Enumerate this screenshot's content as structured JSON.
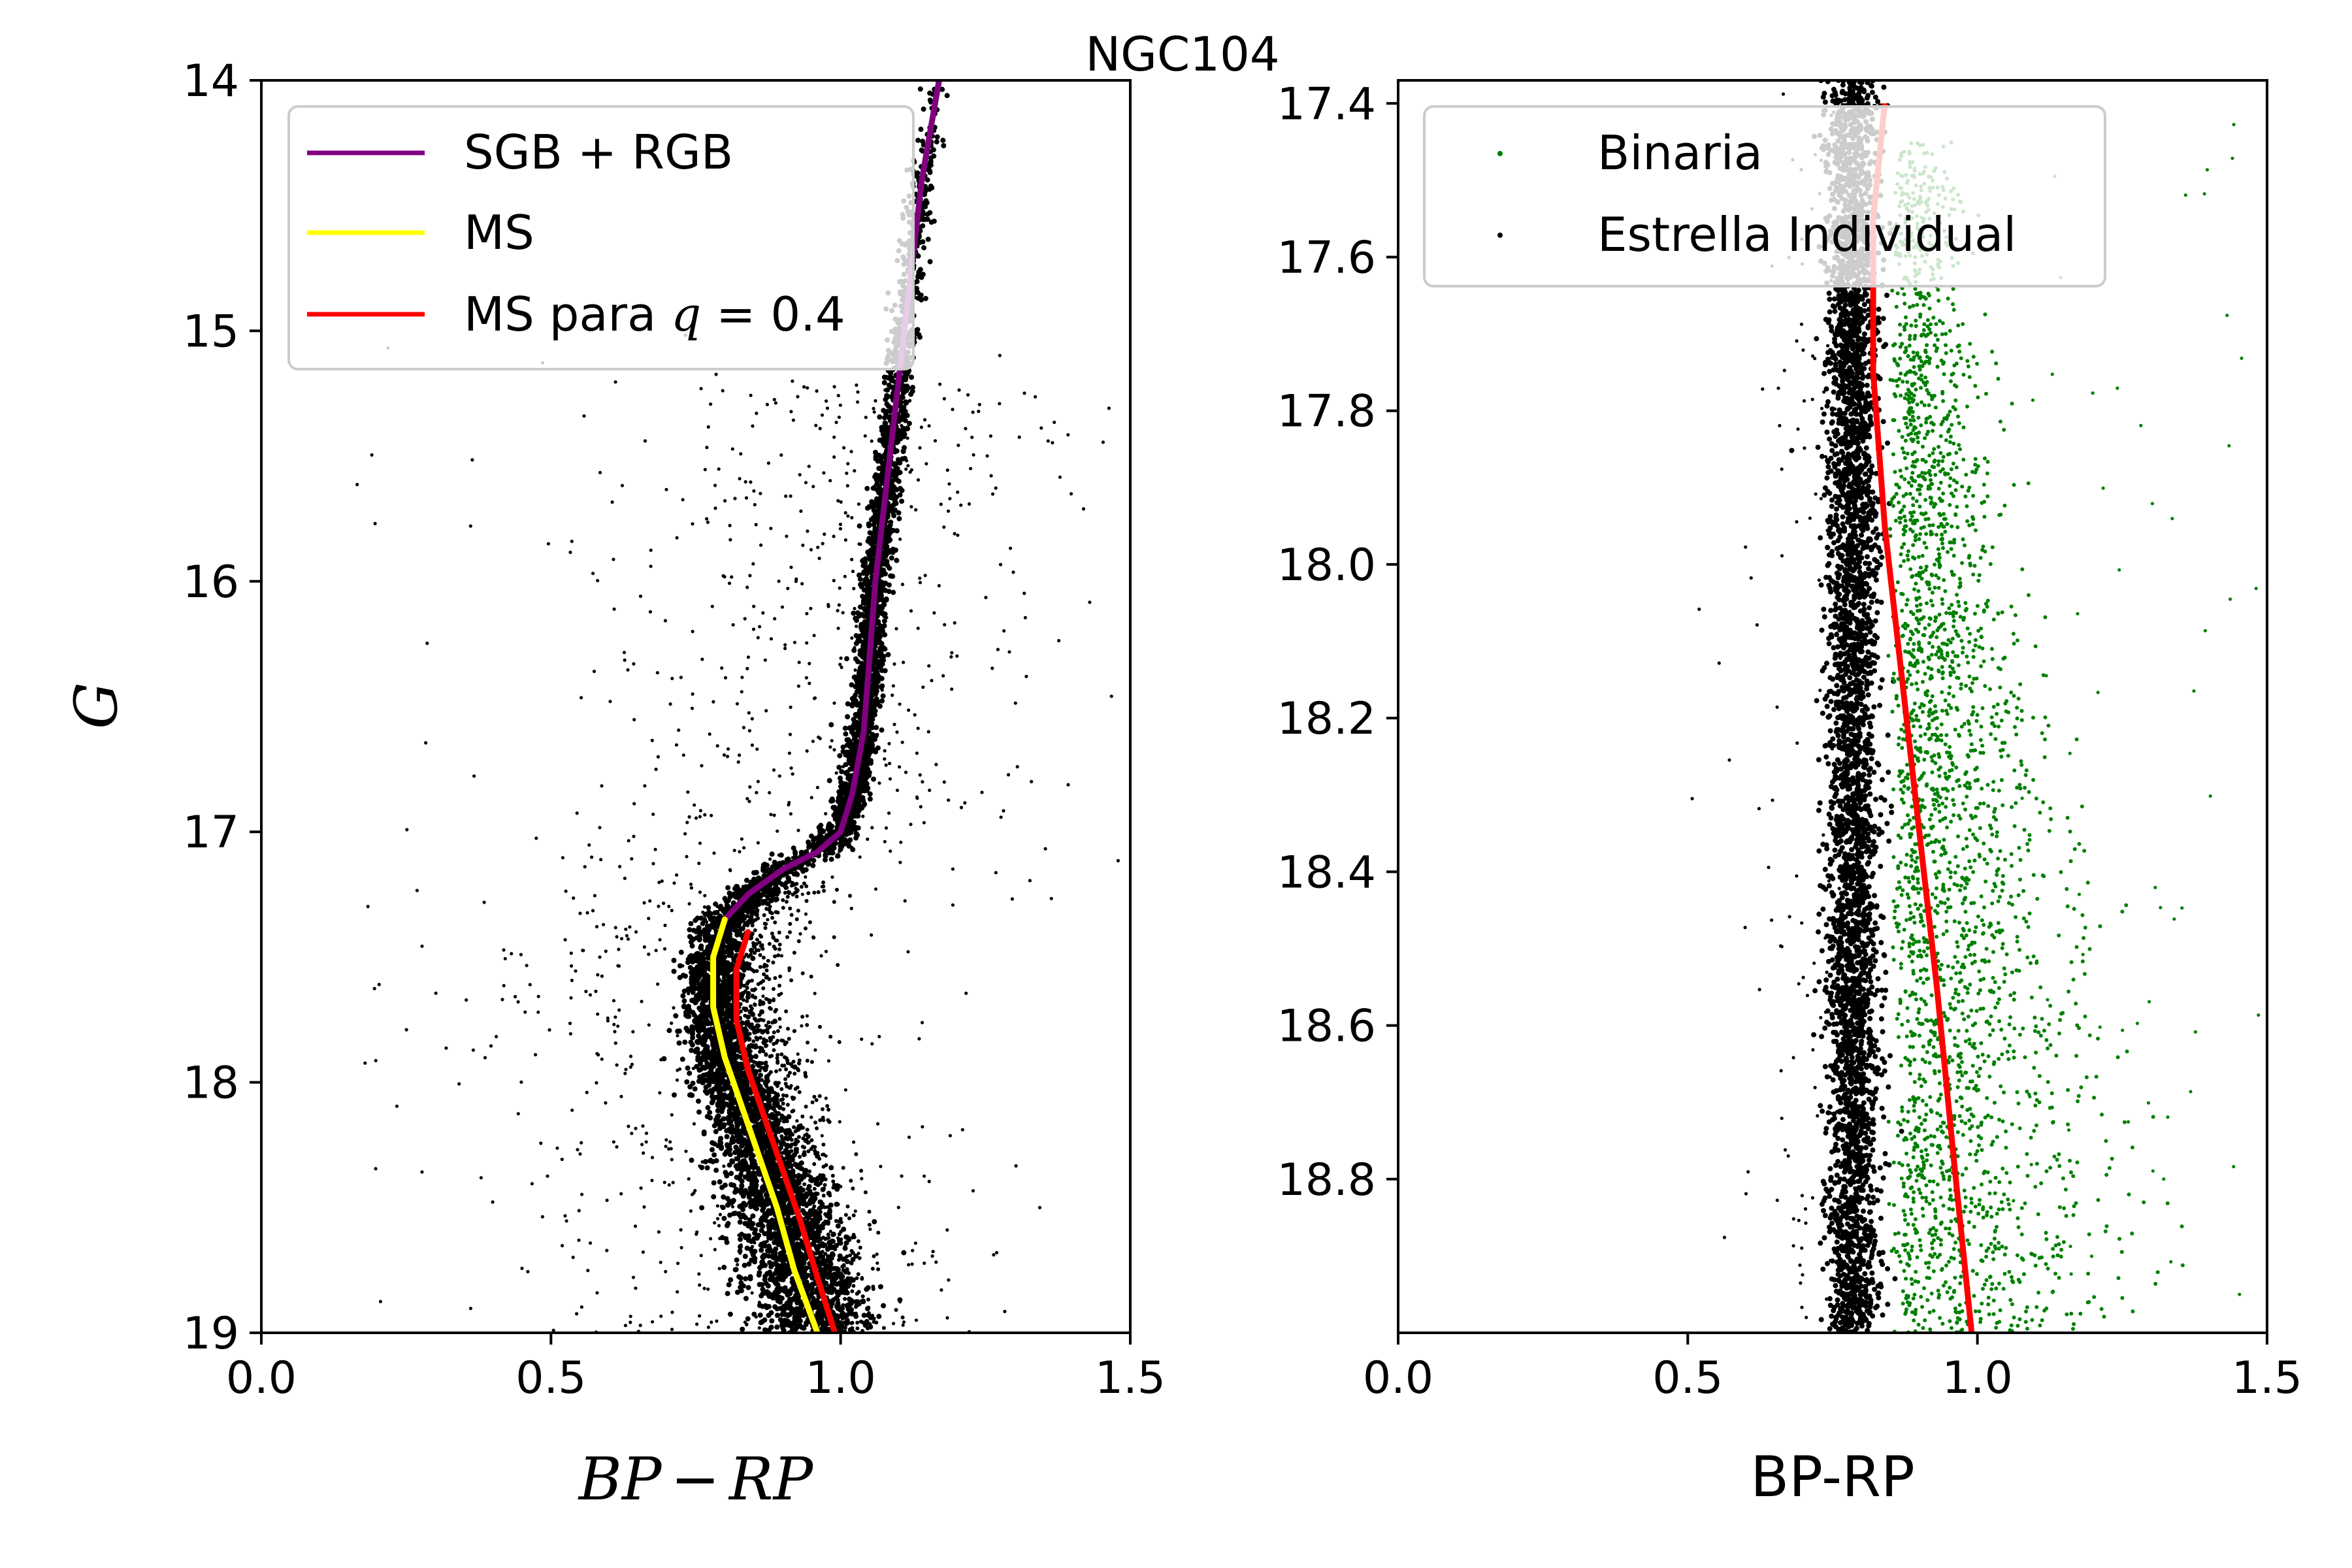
{
  "figure": {
    "suptitle": "NGC104"
  },
  "chart_data": [
    {
      "type": "scatter",
      "panel": "left",
      "xlabel_parts": [
        "BP",
        "−",
        "RP"
      ],
      "ylabel": "G",
      "xlim": [
        0.0,
        1.5
      ],
      "ylim": [
        19,
        14
      ],
      "y_inverted": true,
      "xticks": [
        0.0,
        0.5,
        1.0,
        1.5
      ],
      "xtick_labels": [
        "0.0",
        "0.5",
        "1.0",
        "1.5"
      ],
      "yticks": [
        14,
        15,
        16,
        17,
        18,
        19
      ],
      "ytick_labels": [
        "14",
        "15",
        "16",
        "17",
        "18",
        "19"
      ],
      "legend": {
        "location": "upper-left",
        "entries": [
          {
            "label": "SGB + RGB",
            "color": "#800080"
          },
          {
            "label": "MS",
            "color": "#ffff00"
          },
          {
            "label_prefix": "MS para ",
            "label_math_var": "q",
            "label_math_rest": " = 0.4",
            "color": "#ff0000"
          }
        ]
      },
      "series": [
        {
          "name": "SGB + RGB",
          "kind": "line",
          "color": "#800080",
          "points": [
            [
              0.8,
              17.35
            ],
            [
              0.84,
              17.25
            ],
            [
              0.9,
              17.15
            ],
            [
              0.96,
              17.08
            ],
            [
              1.0,
              17.0
            ],
            [
              1.02,
              16.85
            ],
            [
              1.04,
              16.6
            ],
            [
              1.05,
              16.3
            ],
            [
              1.06,
              16.0
            ],
            [
              1.08,
              15.6
            ],
            [
              1.1,
              15.2
            ],
            [
              1.12,
              14.8
            ],
            [
              1.14,
              14.4
            ],
            [
              1.17,
              14.0
            ]
          ]
        },
        {
          "name": "MS",
          "kind": "line",
          "color": "#ffff00",
          "points": [
            [
              0.8,
              17.35
            ],
            [
              0.78,
              17.5
            ],
            [
              0.78,
              17.7
            ],
            [
              0.8,
              17.9
            ],
            [
              0.83,
              18.1
            ],
            [
              0.86,
              18.3
            ],
            [
              0.89,
              18.5
            ],
            [
              0.92,
              18.75
            ],
            [
              0.96,
              19.0
            ]
          ]
        },
        {
          "name": "MS para q = 0.4",
          "kind": "line",
          "color": "#ff0000",
          "points": [
            [
              0.84,
              17.4
            ],
            [
              0.82,
              17.55
            ],
            [
              0.82,
              17.75
            ],
            [
              0.84,
              17.95
            ],
            [
              0.87,
              18.15
            ],
            [
              0.9,
              18.35
            ],
            [
              0.93,
              18.55
            ],
            [
              0.96,
              18.78
            ],
            [
              0.99,
              19.0
            ]
          ]
        },
        {
          "name": "stars",
          "kind": "scatter",
          "color": "#000000"
        }
      ]
    },
    {
      "type": "scatter",
      "panel": "right",
      "xlabel": "BP-RP",
      "ylabel": "",
      "xlim": [
        0.0,
        1.5
      ],
      "ylim": [
        19.0,
        17.37
      ],
      "y_inverted": true,
      "xticks": [
        0.0,
        0.5,
        1.0,
        1.5
      ],
      "xtick_labels": [
        "0.0",
        "0.5",
        "1.0",
        "1.5"
      ],
      "yticks": [
        17.4,
        17.6,
        17.8,
        18.0,
        18.2,
        18.4,
        18.6,
        18.8
      ],
      "ytick_labels": [
        "17.4",
        "17.6",
        "17.8",
        "18.0",
        "18.2",
        "18.4",
        "18.6",
        "18.8"
      ],
      "legend": {
        "location": "upper-left",
        "entries": [
          {
            "label": "Binaria",
            "color": "#008000"
          },
          {
            "label": "Estrella Individual",
            "color": "#000000"
          }
        ]
      },
      "series": [
        {
          "name": "Binaria",
          "kind": "scatter",
          "color": "#008000"
        },
        {
          "name": "Estrella Individual",
          "kind": "scatter",
          "color": "#000000"
        },
        {
          "name": "MS para q = 0.4",
          "kind": "line",
          "color": "#ff0000",
          "points": [
            [
              0.84,
              17.4
            ],
            [
              0.82,
              17.55
            ],
            [
              0.82,
              17.75
            ],
            [
              0.84,
              17.95
            ],
            [
              0.87,
              18.15
            ],
            [
              0.9,
              18.35
            ],
            [
              0.93,
              18.55
            ],
            [
              0.96,
              18.78
            ],
            [
              0.99,
              19.0
            ]
          ]
        }
      ]
    }
  ]
}
